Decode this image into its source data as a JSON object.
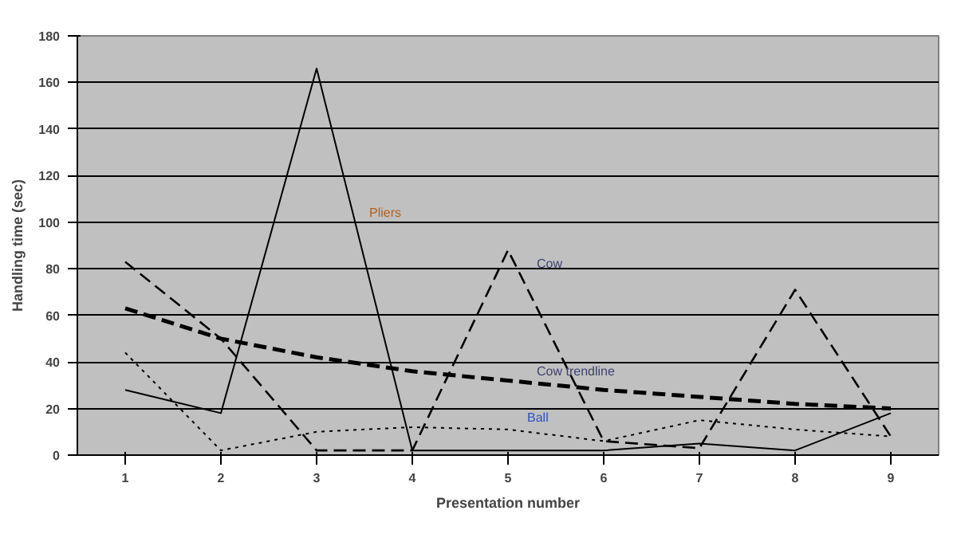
{
  "chart_data": {
    "type": "line",
    "xlabel": "Presentation number",
    "ylabel": "Handling time (sec)",
    "categories": [
      "1",
      "2",
      "3",
      "4",
      "5",
      "6",
      "7",
      "8",
      "9"
    ],
    "ylim": [
      0,
      180
    ],
    "yticks": [
      0,
      20,
      40,
      60,
      80,
      100,
      120,
      140,
      160,
      180
    ],
    "grid": "y",
    "marker": "none",
    "series": [
      {
        "name": "Pliers",
        "color": "#000000",
        "line_style": "solid",
        "values": [
          28,
          18,
          166,
          2,
          2,
          2,
          5,
          2,
          18
        ]
      },
      {
        "name": "Cow",
        "color": "#000000",
        "line_style": "dashed",
        "values": [
          83,
          50,
          2,
          2,
          88,
          6,
          3,
          71,
          8
        ]
      },
      {
        "name": "Cow trendline",
        "color": "#000000",
        "line_style": "dashed",
        "values": [
          63,
          50,
          42,
          36,
          32,
          28,
          25,
          22,
          20
        ]
      },
      {
        "name": "Ball",
        "color": "#000000",
        "line_style": "dotted",
        "values": [
          44,
          2,
          10,
          12,
          11,
          6,
          15,
          11,
          8
        ]
      }
    ]
  }
}
